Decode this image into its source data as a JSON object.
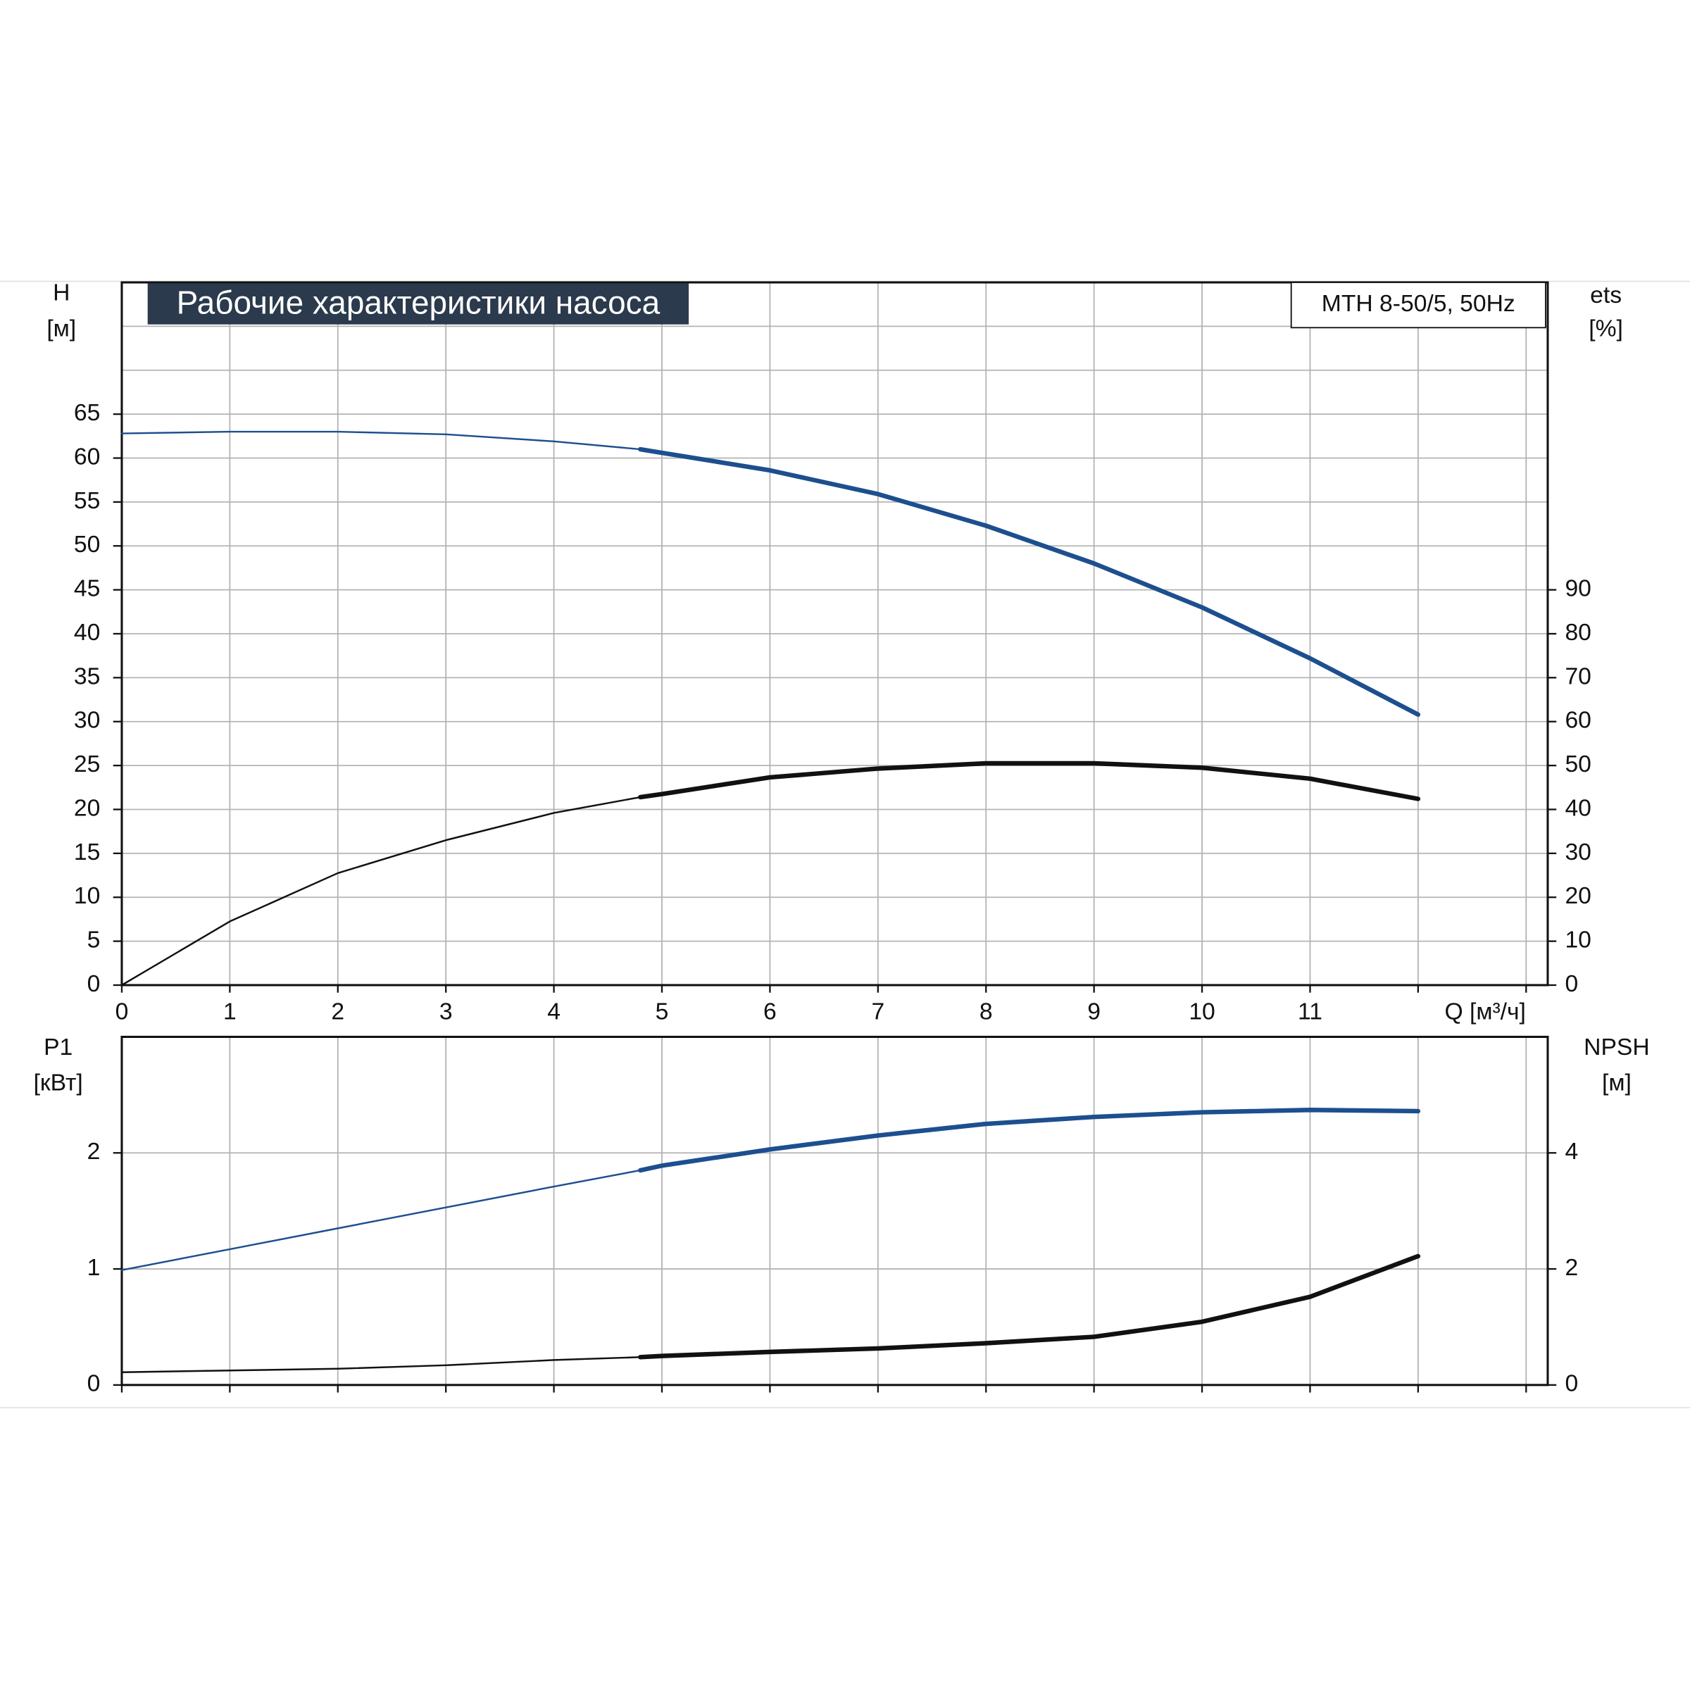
{
  "chart_data": [
    {
      "type": "line",
      "title": "Рабочие характеристики насоса",
      "annotation": "MTH 8-50/5, 50Hz",
      "ylabel": "H",
      "yunit": "[м]",
      "y2label": "ets",
      "y2unit": "[%]",
      "xlabel": "Q [м³/ч]",
      "x": [
        0,
        1,
        2,
        3,
        4,
        4.8,
        5,
        6,
        7,
        8,
        9,
        10,
        11,
        12
      ],
      "series": [
        {
          "color": "#1d4f8f",
          "axis": "y",
          "values": [
            62.8,
            63.0,
            63.0,
            62.7,
            61.9,
            61.0,
            60.6,
            58.6,
            55.9,
            52.3,
            48.0,
            43.0,
            37.2,
            30.8
          ]
        },
        {
          "color": "#111111",
          "axis": "y2",
          "values": [
            0,
            14.5,
            25.5,
            33,
            39.2,
            42.8,
            43.5,
            47.3,
            49.3,
            50.5,
            50.5,
            49.5,
            47,
            42.4
          ]
        }
      ],
      "thick_from": 4.8,
      "xlim": [
        0,
        13.2
      ],
      "xticks": [
        0,
        1,
        2,
        3,
        4,
        5,
        6,
        7,
        8,
        9,
        10,
        11
      ],
      "xgrid": [
        0,
        1,
        2,
        3,
        4,
        5,
        6,
        7,
        8,
        9,
        10,
        11,
        12,
        13
      ],
      "ylim": [
        0,
        80
      ],
      "yticks": [
        0,
        5,
        10,
        15,
        20,
        25,
        30,
        35,
        40,
        45,
        50,
        55,
        60,
        65
      ],
      "ygrid": [
        5,
        10,
        15,
        20,
        25,
        30,
        35,
        40,
        45,
        50,
        55,
        60,
        65,
        70,
        75
      ],
      "y2lim": [
        0,
        160
      ],
      "y2ticks": [
        0,
        10,
        20,
        30,
        40,
        50,
        60,
        70,
        80,
        90
      ],
      "grid": true
    },
    {
      "type": "line",
      "ylabel": "P1",
      "yunit": "[кВт]",
      "y2label": "NPSH",
      "y2unit": "[м]",
      "x": [
        0,
        1,
        2,
        3,
        4,
        4.8,
        5,
        6,
        7,
        8,
        9,
        10,
        11,
        12
      ],
      "series": [
        {
          "color": "#1d4f8f",
          "axis": "y",
          "values": [
            0.99,
            1.17,
            1.35,
            1.53,
            1.71,
            1.85,
            1.89,
            2.03,
            2.15,
            2.25,
            2.31,
            2.35,
            2.37,
            2.36
          ]
        },
        {
          "color": "#111111",
          "axis": "y2",
          "values": [
            0.22,
            0.25,
            0.28,
            0.34,
            0.43,
            0.48,
            0.5,
            0.57,
            0.63,
            0.72,
            0.83,
            1.09,
            1.52,
            2.22
          ]
        }
      ],
      "thick_from": 4.8,
      "xlim": [
        0,
        13.2
      ],
      "xgrid": [
        0,
        1,
        2,
        3,
        4,
        5,
        6,
        7,
        8,
        9,
        10,
        11,
        12,
        13
      ],
      "ylim": [
        0,
        3
      ],
      "yticks": [
        0,
        1,
        2
      ],
      "ygrid": [
        1,
        2
      ],
      "y2lim": [
        0,
        6
      ],
      "y2ticks": [
        0,
        2,
        4
      ],
      "grid": true
    }
  ]
}
